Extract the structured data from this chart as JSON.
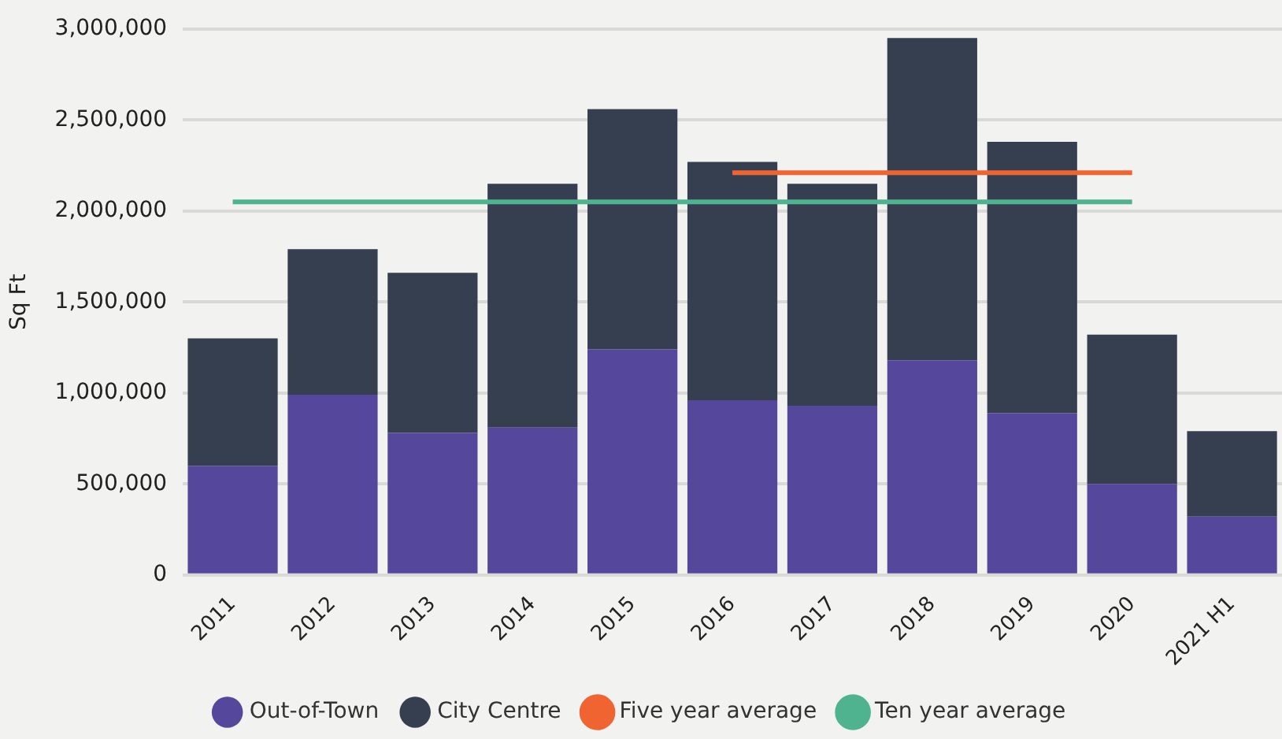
{
  "chart_data": {
    "type": "bar",
    "ylabel": "Sq Ft",
    "stacked": true,
    "grid": "y",
    "legend": "bottom",
    "marker": "none",
    "categories": [
      "2011",
      "2012",
      "2013",
      "2014",
      "2015",
      "2016",
      "2017",
      "2018",
      "2019",
      "2020",
      "2021 H1"
    ],
    "ylim": [
      0,
      3000000
    ],
    "yticks": [
      {
        "value": 0,
        "label": "0"
      },
      {
        "value": 500000,
        "label": "500,000"
      },
      {
        "value": 1000000,
        "label": "1,000,000"
      },
      {
        "value": 1500000,
        "label": "1,500,000"
      },
      {
        "value": 2000000,
        "label": "2,000,000"
      },
      {
        "value": 2500000,
        "label": "2,500,000"
      },
      {
        "value": 3000000,
        "label": "3,000,000"
      }
    ],
    "series": [
      {
        "name": "Out-of-Town",
        "color": "#55489c",
        "values": [
          600000,
          990000,
          780000,
          810000,
          1240000,
          960000,
          930000,
          1180000,
          890000,
          500000,
          320000
        ]
      },
      {
        "name": "City Centre",
        "color": "#353f50",
        "values": [
          700000,
          800000,
          880000,
          1340000,
          1320000,
          1310000,
          1220000,
          1770000,
          1490000,
          820000,
          470000
        ]
      },
      {
        "name": "Five year average",
        "type": "line",
        "color": "#f06432",
        "values": [
          null,
          null,
          null,
          null,
          null,
          2210000,
          2210000,
          2210000,
          2210000,
          2210000,
          null
        ]
      },
      {
        "name": "Ten year average",
        "type": "line",
        "color": "#4fb38f",
        "values": [
          2050000,
          2050000,
          2050000,
          2050000,
          2050000,
          2050000,
          2050000,
          2050000,
          2050000,
          2050000,
          null
        ]
      }
    ]
  }
}
